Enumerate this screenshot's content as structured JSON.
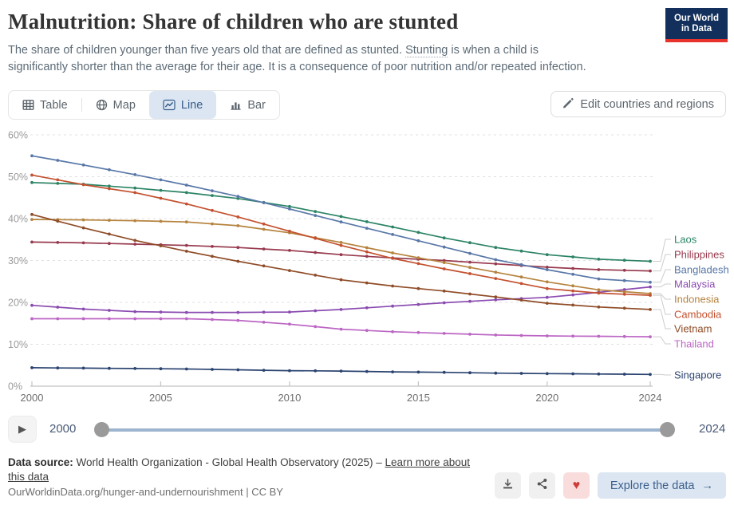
{
  "header": {
    "title": "Malnutrition: Share of children who are stunted",
    "subtitle": {
      "before_term": "The share of children younger than five years old that are defined as stunted. ",
      "term": "Stunting",
      "after_term": " is when a child is significantly shorter than the average for their age. It is a consequence of poor nutrition and/or repeated infection."
    },
    "logo": {
      "line1": "Our World",
      "line2": "in Data"
    }
  },
  "toolbar": {
    "tabs": [
      {
        "label": "Table",
        "icon": "table-icon",
        "active": false
      },
      {
        "label": "Map",
        "icon": "globe-icon",
        "active": false
      },
      {
        "label": "Line",
        "icon": "line-chart-icon",
        "active": true
      },
      {
        "label": "Bar",
        "icon": "bar-chart-icon",
        "active": false
      }
    ],
    "edit_button_label": "Edit countries and regions"
  },
  "chart_data": {
    "type": "line",
    "title": "Malnutrition: Share of children who are stunted",
    "unit": "%",
    "ylim": [
      0,
      60
    ],
    "yticks_values": [
      0,
      10,
      20,
      30,
      40,
      50,
      60
    ],
    "ytick_labels": [
      "0%",
      "10%",
      "20%",
      "30%",
      "40%",
      "50%",
      "60%"
    ],
    "xticks": [
      2000,
      2005,
      2010,
      2015,
      2020,
      2024
    ],
    "grid": "horizontal-dashed",
    "legend_position": "right",
    "x": [
      2000,
      2002,
      2004,
      2006,
      2008,
      2010,
      2012,
      2014,
      2016,
      2018,
      2020,
      2022,
      2024
    ],
    "series": [
      {
        "name": "Laos",
        "color": "#2c8465",
        "values": [
          48.6,
          48.2,
          47.3,
          46.2,
          44.8,
          42.9,
          40.5,
          38.0,
          35.4,
          33.1,
          31.4,
          30.3,
          29.8
        ]
      },
      {
        "name": "Philippines",
        "color": "#983a4e",
        "values": [
          34.4,
          34.2,
          33.9,
          33.6,
          33.1,
          32.4,
          31.4,
          30.6,
          30.0,
          29.2,
          28.4,
          27.8,
          27.5
        ]
      },
      {
        "name": "Bangladesh",
        "color": "#5877a8",
        "values": [
          55.0,
          52.8,
          50.5,
          48.0,
          45.3,
          42.3,
          39.2,
          36.2,
          33.2,
          30.2,
          27.8,
          25.6,
          24.8
        ]
      },
      {
        "name": "Malaysia",
        "color": "#8a4bb0",
        "values": [
          19.3,
          18.4,
          17.8,
          17.6,
          17.6,
          17.7,
          18.3,
          19.1,
          19.9,
          20.6,
          21.2,
          22.4,
          23.7
        ]
      },
      {
        "name": "Indonesia",
        "color": "#b5833e",
        "values": [
          39.8,
          39.7,
          39.5,
          39.2,
          38.3,
          36.6,
          34.3,
          31.8,
          29.5,
          27.2,
          24.9,
          23.0,
          22.1
        ]
      },
      {
        "name": "Cambodia",
        "color": "#c3512f",
        "values": [
          50.4,
          48.1,
          46.2,
          43.5,
          40.4,
          37.0,
          33.6,
          30.5,
          28.0,
          25.7,
          23.3,
          22.2,
          21.7
        ]
      },
      {
        "name": "Vietnam",
        "color": "#8f4c27",
        "values": [
          41.0,
          37.8,
          34.8,
          32.2,
          29.8,
          27.6,
          25.4,
          23.9,
          22.7,
          21.3,
          19.8,
          18.9,
          18.3
        ]
      },
      {
        "name": "Thailand",
        "color": "#bc66c4",
        "values": [
          16.1,
          16.1,
          16.1,
          16.1,
          15.7,
          14.8,
          13.6,
          13.0,
          12.6,
          12.2,
          12.0,
          11.9,
          11.8
        ]
      },
      {
        "name": "Singapore",
        "color": "#2a4370",
        "values": [
          4.4,
          4.3,
          4.2,
          4.1,
          3.9,
          3.7,
          3.6,
          3.4,
          3.3,
          3.1,
          3.0,
          2.9,
          2.8
        ]
      }
    ]
  },
  "timeline": {
    "play_icon": "▶",
    "start_year": "2000",
    "end_year": "2024"
  },
  "footer": {
    "source_label": "Data source:",
    "source_text": " World Health Organization - Global Health Observatory (2025) – ",
    "learn_more_link": "Learn more about this data",
    "citation": "OurWorldinData.org/hunger-and-undernourishment | CC BY",
    "explore_label": "Explore the data",
    "arrow_icon": "→",
    "heart_icon": "♥"
  },
  "colors": {
    "brand_navy": "#12305b",
    "brand_red": "#e8332c",
    "accent_blue": "#3a5e8c",
    "active_tab_bg": "#dbe6f2",
    "heart_red": "#cf3b3b",
    "heart_bg": "#f9dcdc",
    "timeline_track": "#9db4cf"
  }
}
